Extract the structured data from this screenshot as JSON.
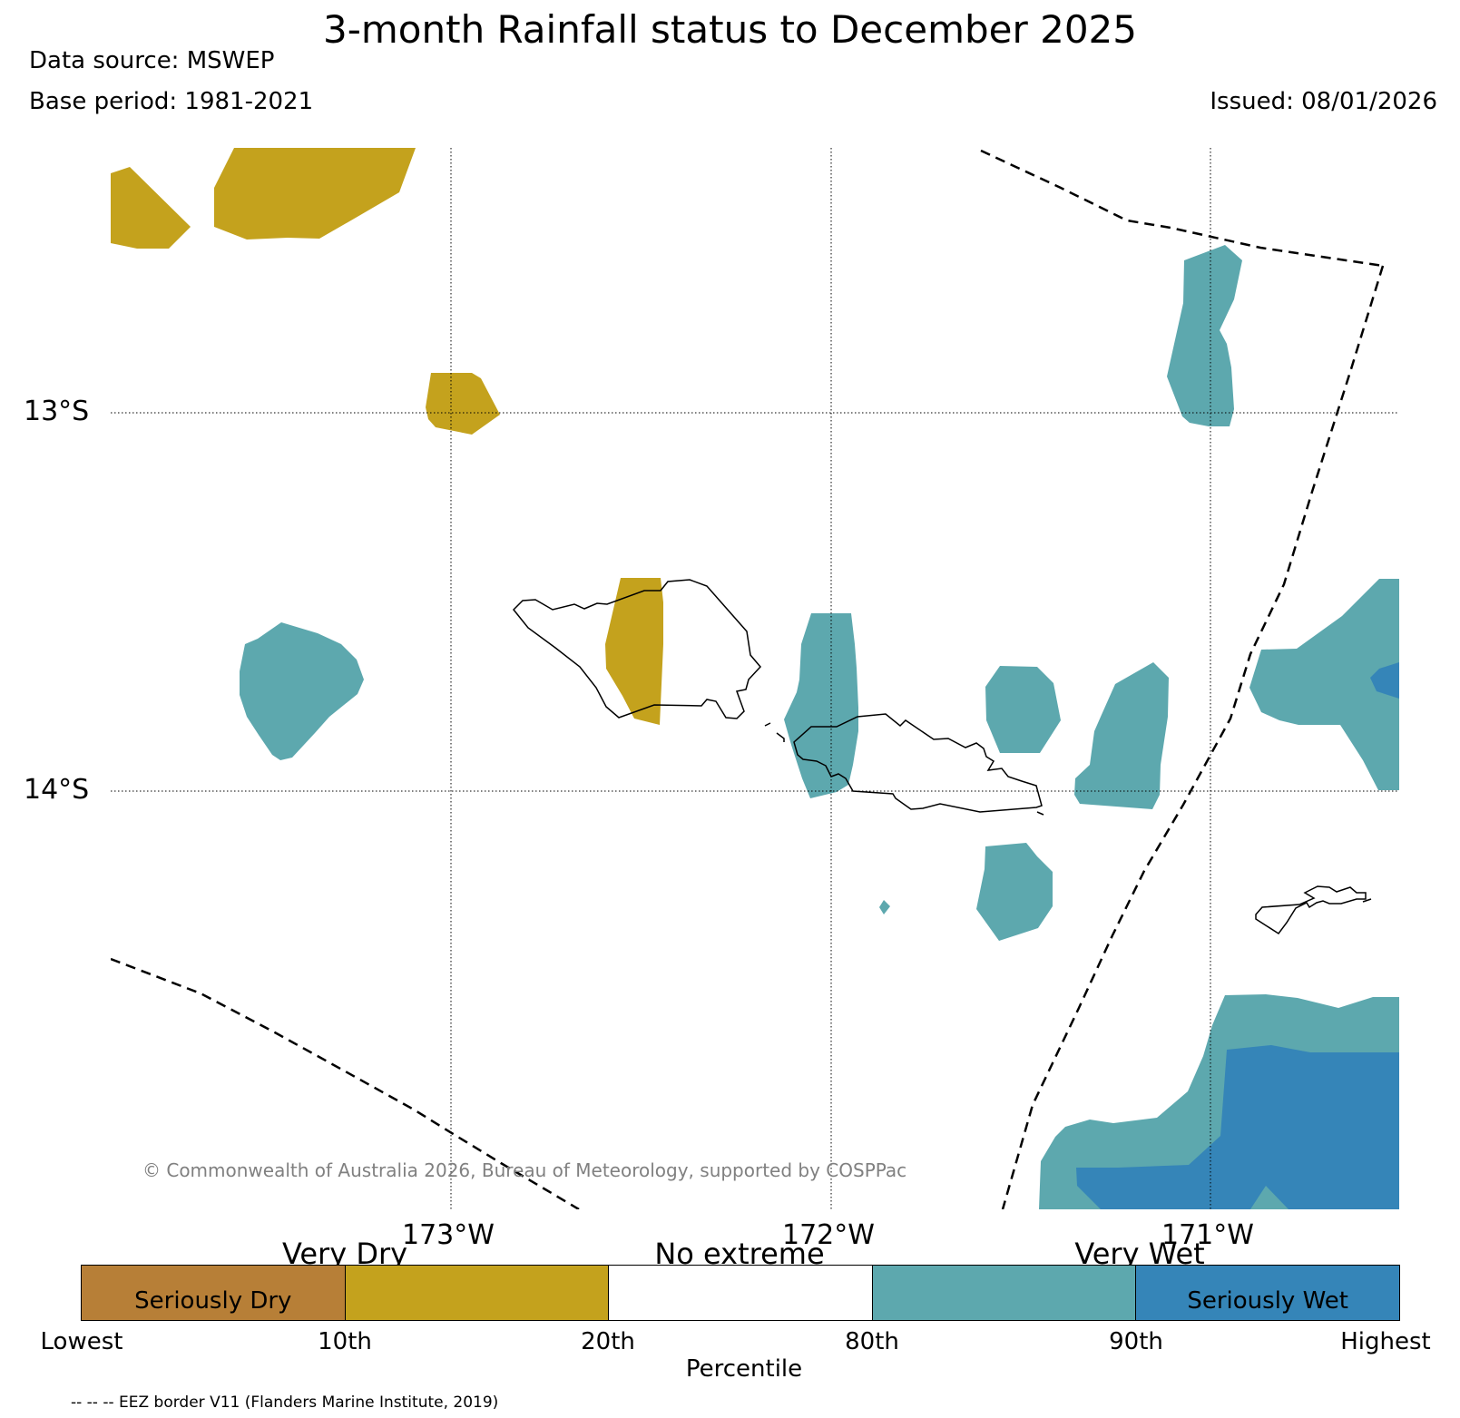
{
  "title": "3-month Rainfall status to December 2025",
  "data_source": "Data source: MSWEP",
  "base_period": "Base period: 1981-2021",
  "issued": "Issued: 08/01/2026",
  "map": {
    "lat_labels": [
      "13°S",
      "14°S"
    ],
    "lon_labels": [
      "173°W",
      "172°W",
      "171°W"
    ],
    "copyright": "© Commonwealth of Australia 2026, Bureau of Meteorology, supported by COSPPac"
  },
  "colorbar": {
    "categories": [
      "Very Dry",
      "No extreme",
      "Very Wet"
    ],
    "segments": [
      {
        "label": "Seriously Dry",
        "color": "#b77f37"
      },
      {
        "label": "",
        "color": "#c4a21d"
      },
      {
        "label": "",
        "color": "#ffffff"
      },
      {
        "label": "",
        "color": "#5da8ae"
      },
      {
        "label": "Seriously Wet",
        "color": "#3585b8"
      }
    ],
    "ticks": [
      "Lowest",
      "10th",
      "20th",
      "80th",
      "90th",
      "Highest"
    ],
    "axis_label": "Percentile"
  },
  "footnote": "-- -- -- EEZ border V11 (Flanders Marine Institute, 2019)",
  "colors": {
    "very_dry": "#c4a21d",
    "very_wet": "#5da8ae",
    "seriously_wet": "#3585b8",
    "seriously_dry": "#b77f37"
  }
}
